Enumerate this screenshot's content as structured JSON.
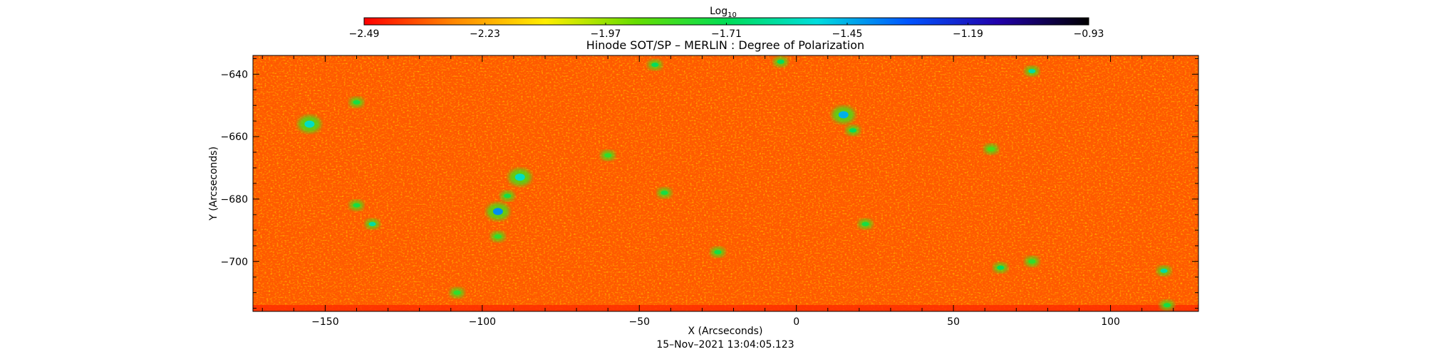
{
  "chart_data": {
    "type": "heatmap",
    "title": "Hinode SOT/SP – MERLIN : Degree of Polarization",
    "xlabel": "X (Arcseconds)",
    "ylabel": "Y (Arcseconds)",
    "timestamp": "15–Nov–2021  13:04:05.123",
    "xlim": [
      -173,
      128
    ],
    "ylim": [
      -716,
      -634
    ],
    "x_ticks": [
      -150,
      -100,
      -50,
      0,
      50,
      100
    ],
    "x_tick_labels": [
      "−150",
      "−100",
      "−50",
      "0",
      "50",
      "100"
    ],
    "y_ticks": [
      -640,
      -660,
      -680,
      -700
    ],
    "y_tick_labels": [
      "−640",
      "−660",
      "−680",
      "−700"
    ],
    "colorbar": {
      "label_base": "Log",
      "label_sub": "10",
      "min": -2.49,
      "max": -0.93,
      "ticks": [
        -2.49,
        -2.23,
        -1.97,
        -1.71,
        -1.45,
        -1.19,
        -0.93
      ],
      "tick_labels": [
        "−2.49",
        "−2.23",
        "−1.97",
        "−1.71",
        "−1.45",
        "−1.19",
        "−0.93"
      ],
      "colors": [
        "#ff0000",
        "#ff8800",
        "#ffee00",
        "#66dd00",
        "#00dd55",
        "#00dddd",
        "#0055ff",
        "#2200aa",
        "#000000"
      ]
    },
    "background_level": -2.37,
    "grid": false,
    "features": [
      {
        "x": -95,
        "y": -684,
        "value": -1.4
      },
      {
        "x": -92,
        "y": -679,
        "value": -1.75
      },
      {
        "x": -95,
        "y": -692,
        "value": -1.8
      },
      {
        "x": -88,
        "y": -673,
        "value": -1.55
      },
      {
        "x": -140,
        "y": -649,
        "value": -1.75
      },
      {
        "x": -155,
        "y": -656,
        "value": -1.55
      },
      {
        "x": -140,
        "y": -682,
        "value": -1.75
      },
      {
        "x": -135,
        "y": -688,
        "value": -1.6
      },
      {
        "x": -108,
        "y": -710,
        "value": -1.8
      },
      {
        "x": -60,
        "y": -666,
        "value": -1.8
      },
      {
        "x": -42,
        "y": -678,
        "value": -1.75
      },
      {
        "x": -45,
        "y": -637,
        "value": -1.7
      },
      {
        "x": -25,
        "y": -697,
        "value": -1.75
      },
      {
        "x": 15,
        "y": -653,
        "value": -1.45
      },
      {
        "x": 18,
        "y": -658,
        "value": -1.7
      },
      {
        "x": 22,
        "y": -688,
        "value": -1.75
      },
      {
        "x": -5,
        "y": -636,
        "value": -1.7
      },
      {
        "x": 65,
        "y": -702,
        "value": -1.7
      },
      {
        "x": 75,
        "y": -700,
        "value": -1.8
      },
      {
        "x": 75,
        "y": -639,
        "value": -1.6
      },
      {
        "x": 117,
        "y": -703,
        "value": -1.6
      },
      {
        "x": 118,
        "y": -714,
        "value": -1.75
      },
      {
        "x": 62,
        "y": -664,
        "value": -1.85
      }
    ]
  }
}
